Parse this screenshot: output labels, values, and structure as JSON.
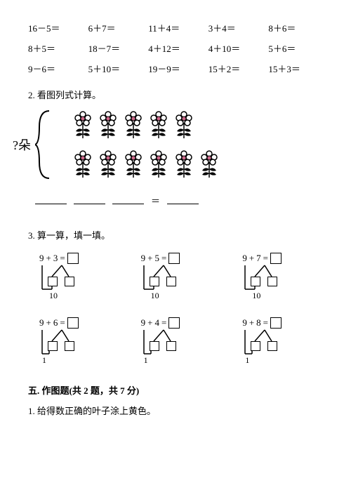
{
  "equations": {
    "rows": [
      [
        "16－5＝",
        "6＋7＝",
        "11＋4＝",
        "3＋4＝",
        "8＋6＝"
      ],
      [
        "8＋5＝",
        "18－7＝",
        "4＋12＝",
        "4＋10＝",
        "5＋6＝"
      ],
      [
        "9－6＝",
        "5＋10＝",
        "19－9＝",
        "15＋2＝",
        "15＋3＝"
      ]
    ]
  },
  "section2": {
    "title": "2. 看图列式计算。",
    "label": "?朵",
    "flowers": {
      "row1_count": 5,
      "row2_count": 6
    },
    "equals": "＝"
  },
  "section3": {
    "title": "3. 算一算，填一填。",
    "problems": [
      {
        "a": "9",
        "op": "+",
        "b": "3",
        "eq": "=",
        "ten": "10"
      },
      {
        "a": "9",
        "op": "+",
        "b": "5",
        "eq": "=",
        "ten": "10"
      },
      {
        "a": "9",
        "op": "+",
        "b": "7",
        "eq": "=",
        "ten": "10"
      },
      {
        "a": "9",
        "op": "+",
        "b": "6",
        "eq": "=",
        "ten": "1"
      },
      {
        "a": "9",
        "op": "+",
        "b": "4",
        "eq": "=",
        "ten": "1"
      },
      {
        "a": "9",
        "op": "+",
        "b": "8",
        "eq": "=",
        "ten": "1"
      }
    ]
  },
  "section5": {
    "header": "五. 作图题(共 2 题，共 7 分)",
    "q1": "1. 给得数正确的叶子涂上黄色。"
  },
  "colors": {
    "text": "#000000",
    "background": "#ffffff",
    "flower_petal": "#ffffff",
    "flower_center": "#cc6688",
    "stem": "#000000"
  }
}
